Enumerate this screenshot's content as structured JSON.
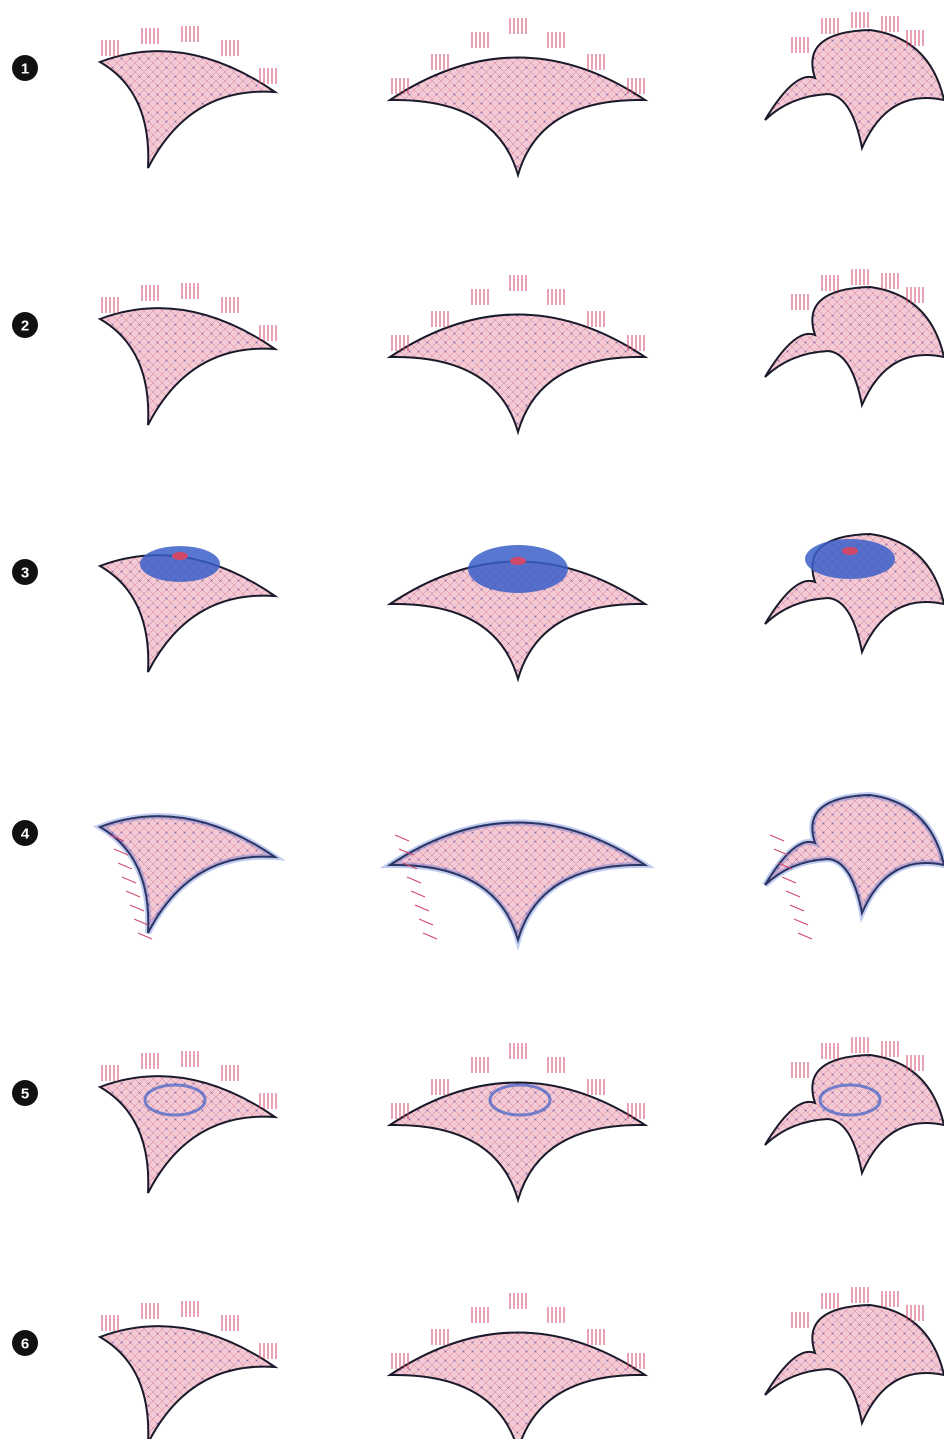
{
  "rows": [
    {
      "label": "1"
    },
    {
      "label": "2"
    },
    {
      "label": "3"
    },
    {
      "label": "4"
    },
    {
      "label": "5"
    },
    {
      "label": "6"
    }
  ]
}
